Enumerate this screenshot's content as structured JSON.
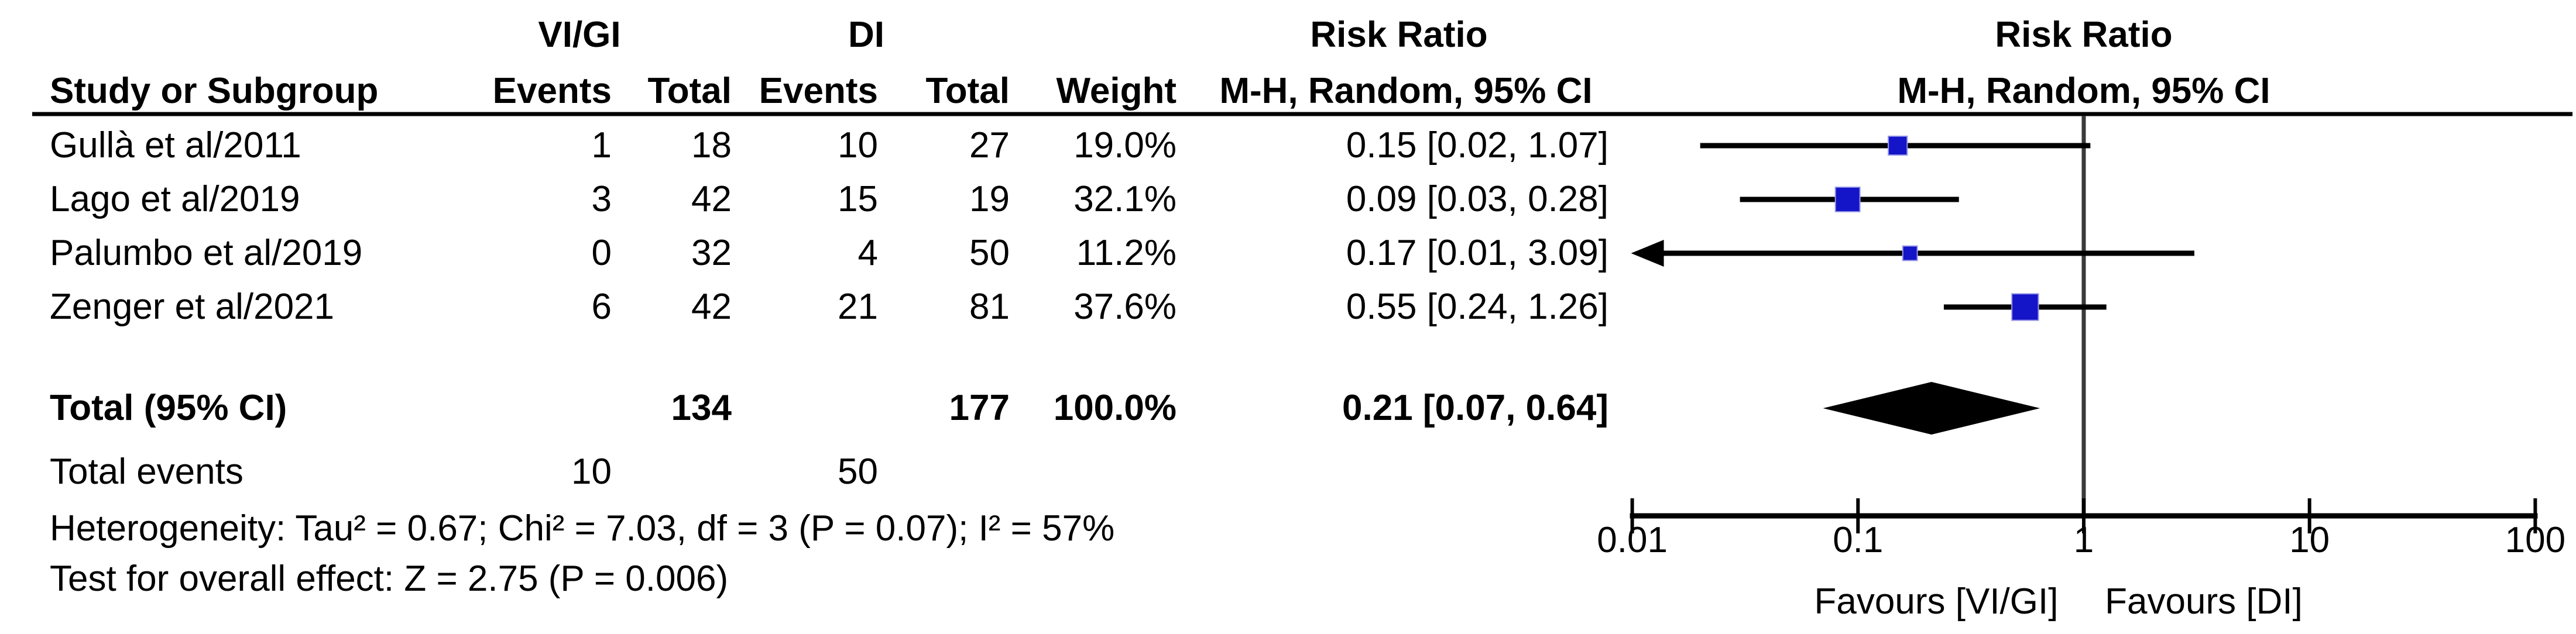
{
  "header": {
    "group1_label": "VI/GI",
    "group2_label": "DI",
    "risk_ratio_label": "Risk Ratio",
    "study_col": "Study or Subgroup",
    "events_col": "Events",
    "total_col": "Total",
    "weight_col": "Weight",
    "method_col": "M-H, Random, 95% CI"
  },
  "totals": {
    "total_label": "Total (95% CI)",
    "total1": "134",
    "total2": "177",
    "weight": "100.0%",
    "rr_ci_text": "0.21 [0.07, 0.64]",
    "total_events_label": "Total events",
    "total_events1": "10",
    "total_events2": "50"
  },
  "stats": {
    "heterogeneity": "Heterogeneity: Tau² = 0.67; Chi² = 7.03, df = 3 (P = 0.07); I² = 57%",
    "overall_effect": "Test for overall effect: Z = 2.75 (P = 0.006)"
  },
  "colors": {
    "square_fill": "#1414c8",
    "square_edge": "#9898e8",
    "line_black": "#000000",
    "null_line_gray": "#3a3a3a"
  },
  "chart_data": {
    "type": "forest",
    "effect_measure": "Risk Ratio",
    "method": "Mantel-Haenszel, Random effects, 95% CI",
    "x_scale": "log10",
    "x_ticks": [
      0.01,
      0.1,
      1,
      10,
      100
    ],
    "x_range": [
      0.01,
      100
    ],
    "null_value": 1,
    "favours_left": "Favours [VI/GI]",
    "favours_right": "Favours [DI]",
    "studies": [
      {
        "name": "Gullà et al/2011",
        "events1": "1",
        "total1": "18",
        "events2": "10",
        "total2": "27",
        "weight_text": "19.0%",
        "rr_ci_text": "0.15 [0.02, 1.07]",
        "rr": 0.15,
        "low": 0.02,
        "high": 1.07,
        "weight_pct": 19.0
      },
      {
        "name": "Lago et al/2019",
        "events1": "3",
        "total1": "42",
        "events2": "15",
        "total2": "19",
        "weight_text": "32.1%",
        "rr_ci_text": "0.09 [0.03, 0.28]",
        "rr": 0.09,
        "low": 0.03,
        "high": 0.28,
        "weight_pct": 32.1
      },
      {
        "name": "Palumbo et al/2019",
        "events1": "0",
        "total1": "32",
        "events2": "4",
        "total2": "50",
        "weight_text": "11.2%",
        "rr_ci_text": "0.17 [0.01, 3.09]",
        "rr": 0.17,
        "low": 0.01,
        "high": 3.09,
        "weight_pct": 11.2
      },
      {
        "name": "Zenger et al/2021",
        "events1": "6",
        "total1": "42",
        "events2": "21",
        "total2": "81",
        "weight_text": "37.6%",
        "rr_ci_text": "0.55 [0.24, 1.26]",
        "rr": 0.55,
        "low": 0.24,
        "high": 1.26,
        "weight_pct": 37.6
      }
    ],
    "overall": {
      "label": "Total (95% CI)",
      "rr": 0.21,
      "low": 0.07,
      "high": 0.64,
      "weight_pct": 100.0
    }
  }
}
